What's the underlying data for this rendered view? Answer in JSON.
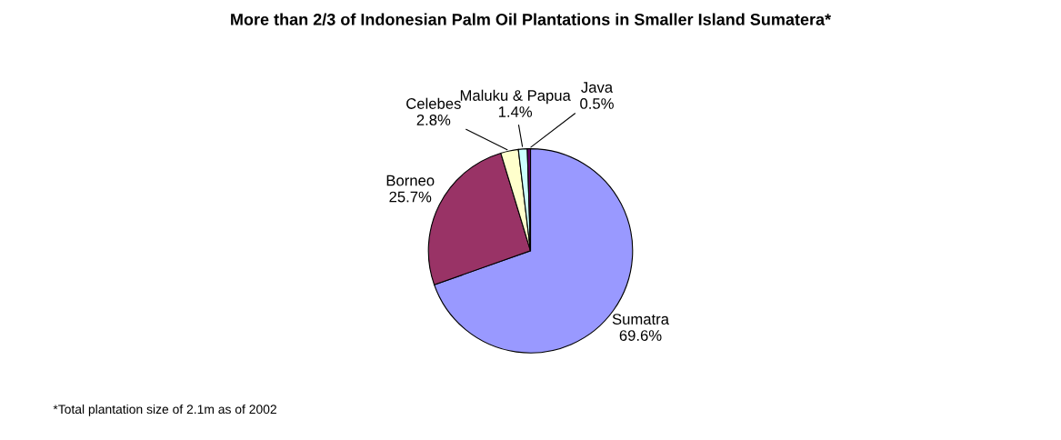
{
  "chart_data": {
    "type": "pie",
    "title": "More than 2/3 of Indonesian Palm Oil Plantations in Smaller Island Sumatera*",
    "categories": [
      "Sumatra",
      "Borneo",
      "Celebes",
      "Maluku & Papua",
      "Java"
    ],
    "values": [
      69.6,
      25.7,
      2.8,
      1.4,
      0.5
    ],
    "colors": [
      "#9999ff",
      "#993366",
      "#ffffcc",
      "#ccffff",
      "#660066"
    ],
    "value_labels": [
      "69.6%",
      "25.7%",
      "2.8%",
      "1.4%",
      "0.5%"
    ],
    "annotations": [
      "*Total plantation size of 2.1m as of 2002"
    ]
  }
}
